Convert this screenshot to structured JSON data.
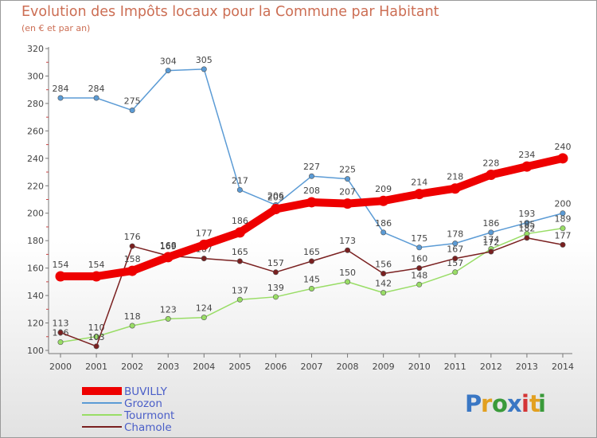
{
  "title": "Evolution des Impôts locaux pour la Commune par Habitant",
  "subtitle": "(en € et par an)",
  "brand": {
    "letters": [
      "P",
      "r",
      "o",
      "x",
      "i",
      "t",
      "i"
    ],
    "colors": [
      "#3a77c4",
      "#e2a020",
      "#3a9a3a",
      "#3a77c4",
      "#d43535",
      "#e2a020",
      "#3a9a3a"
    ]
  },
  "chart_data": {
    "type": "line",
    "x": [
      "2000",
      "2001",
      "2002",
      "2003",
      "2004",
      "2005",
      "2006",
      "2007",
      "2008",
      "2009",
      "2010",
      "2011",
      "2012",
      "2013",
      "2014"
    ],
    "ylim": [
      100,
      320
    ],
    "yticks": [
      100,
      120,
      140,
      160,
      180,
      200,
      220,
      240,
      260,
      280,
      300,
      320
    ],
    "grid": false,
    "legend_position": "bottom-left",
    "series": [
      {
        "name": "BUVILLY",
        "color": "#ee0000",
        "width": 10,
        "values": [
          154,
          154,
          158,
          168,
          177,
          186,
          203,
          208,
          207,
          209,
          214,
          218,
          228,
          234,
          240
        ]
      },
      {
        "name": "Grozon",
        "color": "#5b9bd5",
        "width": 1.5,
        "values": [
          284,
          284,
          275,
          304,
          305,
          217,
          206,
          227,
          225,
          186,
          175,
          178,
          186,
          193,
          200
        ]
      },
      {
        "name": "Tourmont",
        "color": "#99dd66",
        "width": 1.5,
        "values": [
          106,
          110,
          118,
          123,
          124,
          137,
          139,
          145,
          150,
          142,
          148,
          157,
          174,
          185,
          189
        ]
      },
      {
        "name": "Chamole",
        "color": "#7a2020",
        "width": 1.5,
        "values": [
          113,
          103,
          176,
          169,
          167,
          165,
          157,
          165,
          173,
          156,
          160,
          167,
          172,
          182,
          177
        ]
      }
    ]
  }
}
